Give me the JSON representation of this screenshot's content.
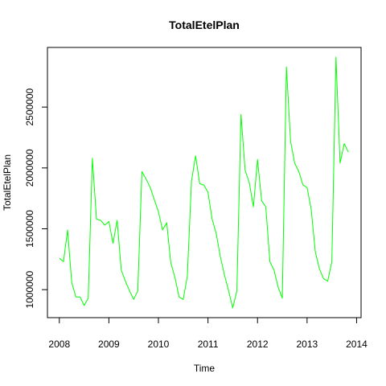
{
  "chart_data": {
    "type": "line",
    "title": "TotalEtelPlan",
    "xlabel": "Time",
    "ylabel": "TotalEtelPlan",
    "xlim": [
      2007.76,
      2014.09
    ],
    "ylim": [
      770000,
      2990000
    ],
    "x_ticks": [
      2008,
      2009,
      2010,
      2011,
      2012,
      2013,
      2014
    ],
    "y_ticks": [
      1000000,
      1500000,
      2000000,
      2500000
    ],
    "grid": false,
    "line_color": "#00ff00",
    "series": [
      {
        "start": 2008,
        "frequency": 12,
        "values": [
          1260000,
          1230000,
          1490000,
          1060000,
          940000,
          940000,
          870000,
          930000,
          2080000,
          1580000,
          1570000,
          1530000,
          1560000,
          1380000,
          1570000,
          1160000,
          1070000,
          990000,
          920000,
          990000,
          1970000,
          1910000,
          1840000,
          1740000,
          1640000,
          1490000,
          1550000,
          1220000,
          1100000,
          940000,
          920000,
          1110000,
          1890000,
          2100000,
          1870000,
          1860000,
          1800000,
          1580000,
          1460000,
          1270000,
          1120000,
          990000,
          850000,
          990000,
          2440000,
          1980000,
          1880000,
          1680000,
          2070000,
          1730000,
          1680000,
          1230000,
          1160000,
          1020000,
          930000,
          2830000,
          2220000,
          2040000,
          1970000,
          1860000,
          1840000,
          1660000,
          1310000,
          1170000,
          1090000,
          1070000,
          1230000,
          2910000,
          2040000,
          2200000,
          2130000
        ]
      }
    ]
  }
}
